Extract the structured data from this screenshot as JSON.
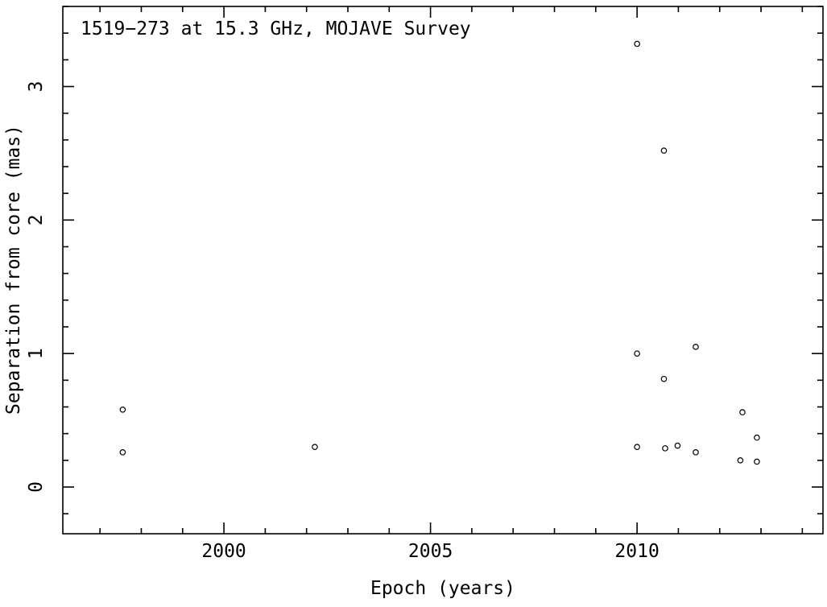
{
  "chart_data": {
    "type": "scatter",
    "title": "1519−273 at 15.3 GHz, MOJAVE Survey",
    "xlabel": "Epoch (years)",
    "ylabel": "Separation from core (mas)",
    "xlim": [
      1996.1,
      2014.5
    ],
    "ylim": [
      -0.35,
      3.6
    ],
    "x_major_ticks": [
      2000,
      2005,
      2010
    ],
    "x_tick_labels": [
      "2000",
      "2005",
      "2010"
    ],
    "x_minor_step": 1,
    "y_major_ticks": [
      0,
      1,
      2,
      3
    ],
    "y_tick_labels": [
      "0",
      "1",
      "2",
      "3"
    ],
    "y_minor_step": 0.2,
    "grid": false,
    "legend": "none",
    "marker": "open-circle",
    "marker_color": "#000000",
    "frame_color": "#000000",
    "background_color": "#ffffff",
    "points": [
      {
        "x": 1997.55,
        "y": 0.58
      },
      {
        "x": 1997.55,
        "y": 0.26
      },
      {
        "x": 2002.2,
        "y": 0.3
      },
      {
        "x": 2010.0,
        "y": 3.32
      },
      {
        "x": 2010.65,
        "y": 2.52
      },
      {
        "x": 2010.0,
        "y": 1.0
      },
      {
        "x": 2010.65,
        "y": 0.81
      },
      {
        "x": 2011.42,
        "y": 1.05
      },
      {
        "x": 2010.0,
        "y": 0.3
      },
      {
        "x": 2010.68,
        "y": 0.29
      },
      {
        "x": 2010.98,
        "y": 0.31
      },
      {
        "x": 2011.42,
        "y": 0.26
      },
      {
        "x": 2012.55,
        "y": 0.56
      },
      {
        "x": 2012.5,
        "y": 0.2
      },
      {
        "x": 2012.9,
        "y": 0.37
      },
      {
        "x": 2012.9,
        "y": 0.19
      }
    ]
  }
}
